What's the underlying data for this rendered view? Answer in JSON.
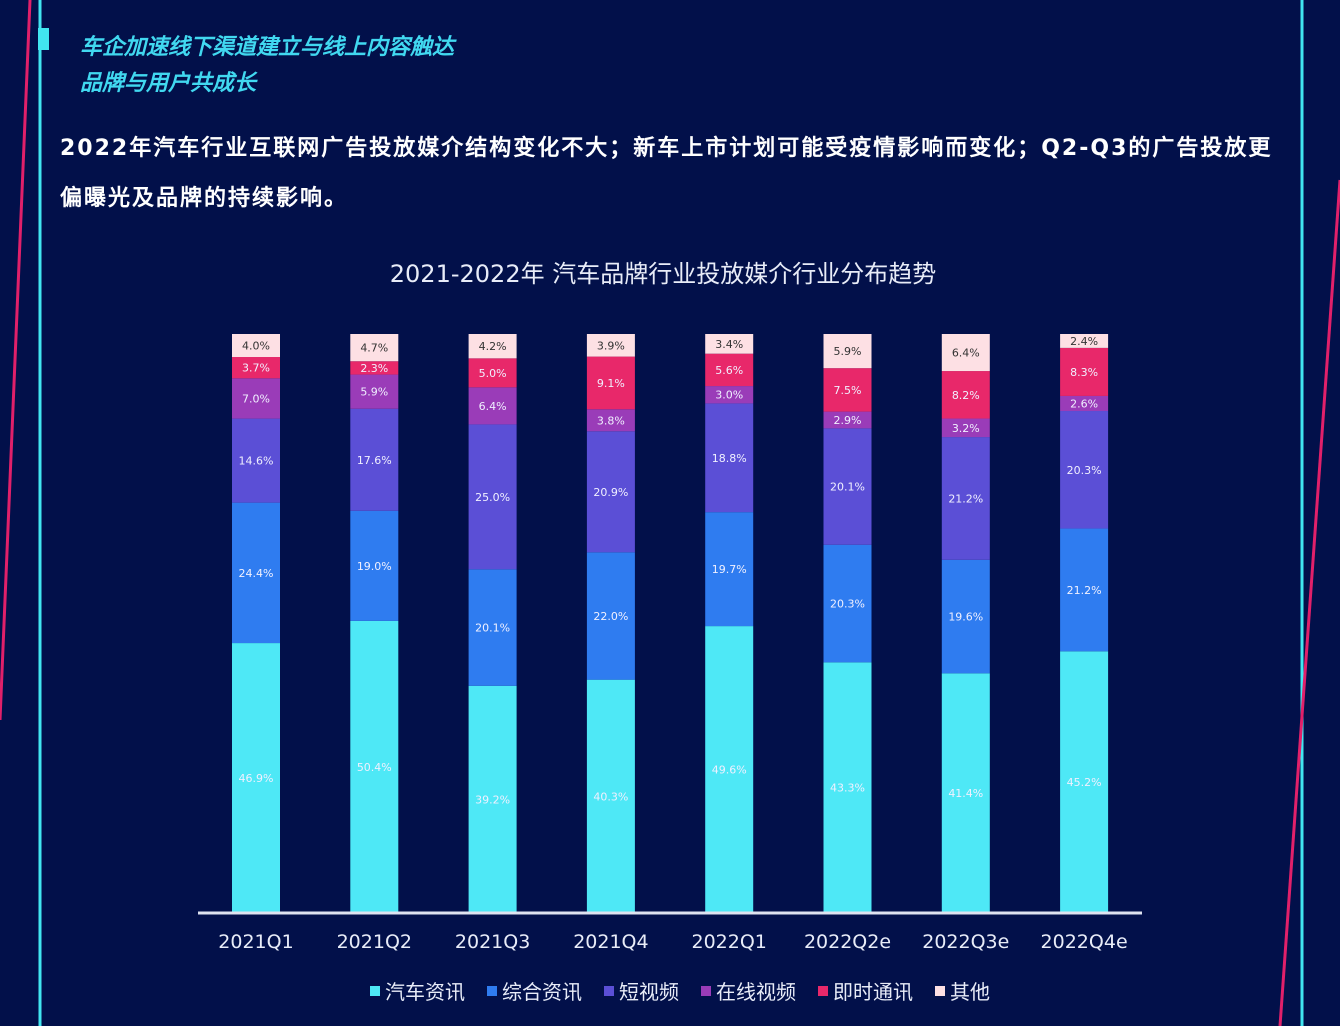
{
  "header": {
    "line1": "车企加速线下渠道建立与线上内容触达",
    "line2": "品牌与用户共成长"
  },
  "description": "2022年汽车行业互联网广告投放媒介结构变化不大；新车上市计划可能受疫情影响而变化；Q2-Q3的广告投放更偏曝光及品牌的持续影响。",
  "colors": {
    "background": "#02104a",
    "accent_cyan": "#41e6f0",
    "accent_magenta": "#e0206a"
  },
  "chart_data": {
    "type": "bar",
    "stacked": true,
    "title": "2021-2022年 汽车品牌行业投放媒介行业分布趋势",
    "categories": [
      "2021Q1",
      "2021Q2",
      "2021Q3",
      "2021Q4",
      "2022Q1",
      "2022Q2e",
      "2022Q3e",
      "2022Q4e"
    ],
    "ylim": [
      0,
      100
    ],
    "unit": "%",
    "legend_position": "bottom",
    "grid": false,
    "series": [
      {
        "name": "汽车资讯",
        "color": "#4ee8f6",
        "values": [
          46.9,
          50.4,
          39.2,
          40.3,
          49.6,
          43.3,
          41.4,
          45.2
        ]
      },
      {
        "name": "综合资讯",
        "color": "#2f7cf0",
        "values": [
          24.4,
          19.0,
          20.1,
          22.0,
          19.7,
          20.3,
          19.6,
          21.2
        ]
      },
      {
        "name": "短视频",
        "color": "#5b4fd6",
        "values": [
          14.6,
          17.6,
          25.0,
          20.9,
          18.8,
          20.1,
          21.2,
          20.3
        ]
      },
      {
        "name": "在线视频",
        "color": "#9a3cb8",
        "values": [
          7.0,
          5.9,
          6.4,
          3.8,
          3.0,
          2.9,
          3.2,
          2.6
        ]
      },
      {
        "name": "即时通讯",
        "color": "#e8286a",
        "values": [
          3.7,
          2.3,
          5.0,
          9.1,
          5.6,
          7.5,
          8.2,
          8.3
        ]
      },
      {
        "name": "其他",
        "color": "#fde0e4",
        "values": [
          4.0,
          4.7,
          4.2,
          3.9,
          3.4,
          5.9,
          6.4,
          2.4
        ]
      }
    ]
  }
}
